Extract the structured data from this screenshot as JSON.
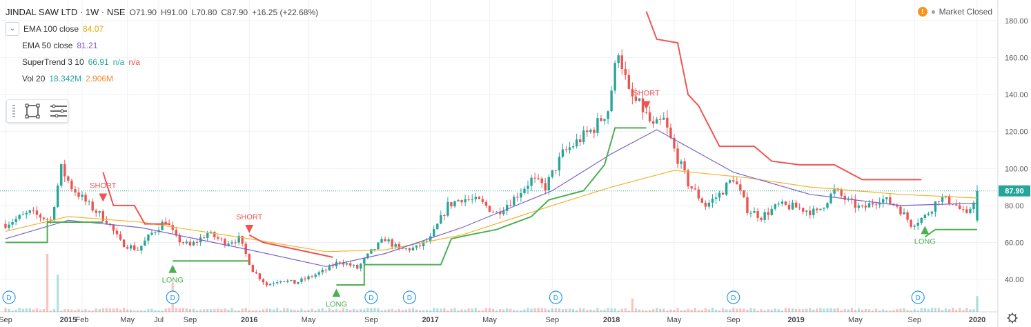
{
  "header": {
    "title": "JINDAL SAW LTD · 1W · NSE",
    "open": "O71.90",
    "high": "H91.00",
    "low": "L70.80",
    "close": "C87.90",
    "change": "+16.25 (+22.68%)",
    "status": "Market Closed"
  },
  "indicators": [
    {
      "name": "EMA 100 close",
      "value": "84.07",
      "color": "#e0a800"
    },
    {
      "name": "EMA 50 close",
      "value": "81.21",
      "color": "#7e57c2"
    },
    {
      "name": "SuperTrend 3 10",
      "value": "66.91",
      "extra1": "n/a",
      "extra2": "n/a",
      "color": "#26a69a",
      "color2": "#ef5350"
    },
    {
      "name": "Vol 20",
      "value": "18.342M",
      "extra1": "2.906M",
      "color": "#26a69a",
      "color2": "#f28b30"
    }
  ],
  "colors": {
    "up": "#26a69a",
    "down": "#ef5350",
    "ema100": "#f0b429",
    "ema50": "#7b61c9",
    "st_up": "#4caf50",
    "st_down": "#f05350",
    "grid": "#eef0f3"
  },
  "chart_data": {
    "type": "candlestick",
    "symbol": "JINDAL SAW LTD",
    "interval": "1W",
    "last_price": "87.90",
    "ylim": [
      28,
      186
    ],
    "y_ticks": [
      "40.00",
      "60.00",
      "80.00",
      "100.00",
      "120.00",
      "140.00",
      "160.00",
      "180.00"
    ],
    "y_tick_values": [
      40,
      60,
      80,
      100,
      120,
      140,
      160,
      180
    ],
    "x_range": [
      "2014-09-01",
      "2020-01-06"
    ],
    "x_ticks": [
      {
        "label": "Sep",
        "date": "2014-09-01"
      },
      {
        "label": "2015",
        "date": "2015-01-05"
      },
      {
        "label": "Feb",
        "date": "2015-02-02"
      },
      {
        "label": "May",
        "date": "2015-05-04"
      },
      {
        "label": "Jul",
        "date": "2015-07-06"
      },
      {
        "label": "Sep",
        "date": "2015-09-07"
      },
      {
        "label": "2016",
        "date": "2016-01-04"
      },
      {
        "label": "May",
        "date": "2016-05-02"
      },
      {
        "label": "Sep",
        "date": "2016-09-05"
      },
      {
        "label": "2017",
        "date": "2017-01-02"
      },
      {
        "label": "May",
        "date": "2017-05-01"
      },
      {
        "label": "Sep",
        "date": "2017-09-04"
      },
      {
        "label": "2018",
        "date": "2018-01-01"
      },
      {
        "label": "May",
        "date": "2018-05-07"
      },
      {
        "label": "Sep",
        "date": "2018-09-03"
      },
      {
        "label": "2019",
        "date": "2019-01-07"
      },
      {
        "label": "May",
        "date": "2019-05-06"
      },
      {
        "label": "Sep",
        "date": "2019-09-02"
      },
      {
        "label": "2020",
        "date": "2020-01-06"
      }
    ],
    "price_anchors": [
      [
        "2014-09-01",
        70
      ],
      [
        "2014-10-20",
        76
      ],
      [
        "2014-12-01",
        72
      ],
      [
        "2014-12-22",
        100
      ],
      [
        "2015-01-12",
        90
      ],
      [
        "2015-02-16",
        80
      ],
      [
        "2015-03-23",
        72
      ],
      [
        "2015-04-20",
        60
      ],
      [
        "2015-05-25",
        56
      ],
      [
        "2015-06-22",
        65
      ],
      [
        "2015-07-20",
        72
      ],
      [
        "2015-08-10",
        62
      ],
      [
        "2015-09-07",
        58
      ],
      [
        "2015-10-12",
        65
      ],
      [
        "2015-11-16",
        60
      ],
      [
        "2015-12-14",
        62
      ],
      [
        "2016-01-11",
        45
      ],
      [
        "2016-02-08",
        37
      ],
      [
        "2016-03-07",
        40
      ],
      [
        "2016-04-04",
        38
      ],
      [
        "2016-05-02",
        41
      ],
      [
        "2016-06-06",
        45
      ],
      [
        "2016-07-04",
        50
      ],
      [
        "2016-08-08",
        46
      ],
      [
        "2016-09-05",
        55
      ],
      [
        "2016-10-03",
        62
      ],
      [
        "2016-10-31",
        56
      ],
      [
        "2016-12-05",
        57
      ],
      [
        "2017-01-02",
        62
      ],
      [
        "2017-02-06",
        80
      ],
      [
        "2017-03-06",
        84
      ],
      [
        "2017-04-10",
        82
      ],
      [
        "2017-05-15",
        76
      ],
      [
        "2017-06-19",
        84
      ],
      [
        "2017-07-24",
        94
      ],
      [
        "2017-08-21",
        90
      ],
      [
        "2017-09-25",
        108
      ],
      [
        "2017-10-30",
        116
      ],
      [
        "2017-11-27",
        122
      ],
      [
        "2017-12-25",
        132
      ],
      [
        "2018-01-15",
        165
      ],
      [
        "2018-02-05",
        140
      ],
      [
        "2018-03-05",
        132
      ],
      [
        "2018-03-26",
        122
      ],
      [
        "2018-04-16",
        126
      ],
      [
        "2018-05-07",
        110
      ],
      [
        "2018-06-04",
        92
      ],
      [
        "2018-07-09",
        80
      ],
      [
        "2018-08-06",
        86
      ],
      [
        "2018-09-03",
        95
      ],
      [
        "2018-10-01",
        78
      ],
      [
        "2018-10-29",
        74
      ],
      [
        "2018-12-03",
        80
      ],
      [
        "2019-01-07",
        79
      ],
      [
        "2019-02-18",
        76
      ],
      [
        "2019-03-25",
        88
      ],
      [
        "2019-04-22",
        82
      ],
      [
        "2019-05-20",
        78
      ],
      [
        "2019-06-24",
        84
      ],
      [
        "2019-07-29",
        80
      ],
      [
        "2019-08-26",
        70
      ],
      [
        "2019-09-23",
        74
      ],
      [
        "2019-10-21",
        84
      ],
      [
        "2019-11-18",
        82
      ],
      [
        "2019-12-16",
        74
      ],
      [
        "2020-01-06",
        87.9
      ]
    ],
    "ema100": [
      [
        "2014-09-01",
        66
      ],
      [
        "2015-01-05",
        74
      ],
      [
        "2015-06-01",
        71
      ],
      [
        "2016-01-04",
        62
      ],
      [
        "2016-06-06",
        55
      ],
      [
        "2016-10-03",
        56
      ],
      [
        "2017-03-06",
        64
      ],
      [
        "2017-09-04",
        80
      ],
      [
        "2018-01-01",
        90
      ],
      [
        "2018-05-07",
        99
      ],
      [
        "2018-10-01",
        95
      ],
      [
        "2019-02-04",
        90
      ],
      [
        "2019-08-05",
        86
      ],
      [
        "2020-01-06",
        84.07
      ]
    ],
    "ema50": [
      [
        "2014-09-01",
        62
      ],
      [
        "2015-01-05",
        72
      ],
      [
        "2015-06-01",
        68
      ],
      [
        "2016-01-04",
        56
      ],
      [
        "2016-06-06",
        47
      ],
      [
        "2016-10-03",
        54
      ],
      [
        "2017-03-06",
        68
      ],
      [
        "2017-09-04",
        88
      ],
      [
        "2018-01-01",
        108
      ],
      [
        "2018-04-02",
        121
      ],
      [
        "2018-09-03",
        98
      ],
      [
        "2019-02-04",
        86
      ],
      [
        "2019-08-05",
        80
      ],
      [
        "2020-01-06",
        81.21
      ]
    ],
    "supertrend_up": [
      [
        [
          "2014-09-01",
          60
        ],
        [
          "2014-11-24",
          60
        ],
        [
          "2014-11-24",
          71
        ],
        [
          "2015-03-16",
          71
        ]
      ],
      [
        [
          "2015-08-03",
          50
        ],
        [
          "2016-01-04",
          50
        ]
      ],
      [
        [
          "2016-06-27",
          37
        ],
        [
          "2016-08-22",
          37
        ],
        [
          "2016-08-22",
          48
        ],
        [
          "2017-01-23",
          48
        ],
        [
          "2017-02-13",
          62
        ],
        [
          "2017-03-20",
          64
        ],
        [
          "2017-05-15",
          67
        ],
        [
          "2017-07-24",
          74
        ],
        [
          "2017-08-28",
          83
        ],
        [
          "2017-11-06",
          88
        ],
        [
          "2017-12-18",
          102
        ],
        [
          "2018-01-08",
          122
        ],
        [
          "2018-03-12",
          122
        ]
      ],
      [
        [
          "2019-09-23",
          63
        ],
        [
          "2019-10-14",
          67
        ],
        [
          "2020-01-06",
          67
        ]
      ]
    ],
    "supertrend_down": [
      [
        [
          "2015-03-16",
          98
        ],
        [
          "2015-04-06",
          80
        ],
        [
          "2015-05-18",
          80
        ],
        [
          "2015-06-08",
          70
        ],
        [
          "2015-07-27",
          70
        ]
      ],
      [
        [
          "2016-01-04",
          64
        ],
        [
          "2016-02-01",
          60
        ],
        [
          "2016-04-11",
          56
        ],
        [
          "2016-06-20",
          52
        ]
      ],
      [
        [
          "2018-03-12",
          185
        ],
        [
          "2018-04-02",
          170
        ],
        [
          "2018-05-14",
          168
        ],
        [
          "2018-06-04",
          140
        ],
        [
          "2018-06-25",
          134
        ],
        [
          "2018-08-06",
          112
        ],
        [
          "2018-10-15",
          112
        ],
        [
          "2018-11-19",
          104
        ],
        [
          "2019-01-14",
          102
        ],
        [
          "2019-03-25",
          102
        ],
        [
          "2019-05-20",
          94
        ],
        [
          "2019-09-16",
          94
        ]
      ]
    ],
    "signals": [
      {
        "label": "SHORT",
        "date": "2015-03-16",
        "price": 82,
        "dir": "down"
      },
      {
        "label": "LONG",
        "date": "2015-08-03",
        "price": 48,
        "dir": "up"
      },
      {
        "label": "SHORT",
        "date": "2016-01-04",
        "price": 65,
        "dir": "down"
      },
      {
        "label": "LONG",
        "date": "2016-06-27",
        "price": 35,
        "dir": "up"
      },
      {
        "label": "SHORT",
        "date": "2018-03-12",
        "price": 132,
        "dir": "down"
      },
      {
        "label": "LONG",
        "date": "2019-09-23",
        "price": 69,
        "dir": "up"
      }
    ],
    "dividend_markers": [
      {
        "label": "D",
        "date": "2014-09-08"
      },
      {
        "label": "D",
        "date": "2015-08-03"
      },
      {
        "label": "D",
        "date": "2016-09-05"
      },
      {
        "label": "D",
        "date": "2016-11-21"
      },
      {
        "label": "D",
        "date": "2017-09-11"
      },
      {
        "label": "D",
        "date": "2018-09-03"
      },
      {
        "label": "D",
        "date": "2019-09-09"
      }
    ],
    "volume_spikes": [
      [
        "2014-11-24",
        7.0
      ],
      [
        "2014-12-15",
        4.5
      ],
      [
        "2015-08-03",
        3.5
      ],
      [
        "2018-02-12",
        1.6
      ],
      [
        "2020-01-06",
        1.9
      ]
    ]
  }
}
